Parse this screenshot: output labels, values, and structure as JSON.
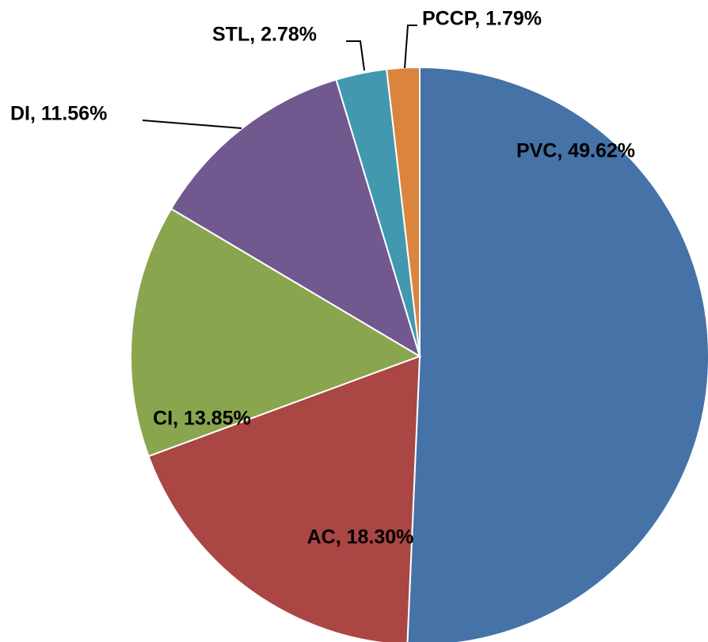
{
  "chart_data": {
    "type": "pie",
    "values": [
      49.62,
      18.3,
      13.85,
      11.56,
      2.78,
      1.79
    ],
    "value_labels": [
      "PVC, 49.62%",
      "AC, 18.30%",
      "CI, 13.85%",
      "DI, 11.56%",
      "STL, 2.78%",
      "PCCP, 1.79%"
    ],
    "colors": [
      "#4572a7",
      "#aa4643",
      "#89a54e",
      "#71588f",
      "#4198af",
      "#db843d"
    ]
  }
}
